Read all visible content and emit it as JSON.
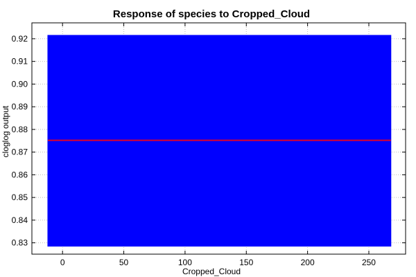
{
  "chart_data": {
    "type": "area",
    "title": "Response of species to Cropped_Cloud",
    "xlabel": "Cropped_Cloud",
    "ylabel": "cloglog output",
    "xlim": [
      -25,
      280
    ],
    "ylim": [
      0.825,
      0.927
    ],
    "xticks": [
      0,
      50,
      100,
      150,
      200,
      250
    ],
    "yticks": [
      0.83,
      0.84,
      0.85,
      0.86,
      0.87,
      0.88,
      0.89,
      0.9,
      0.91,
      0.92
    ],
    "ytick_labels": [
      "0.83",
      "0.84",
      "0.85",
      "0.86",
      "0.87",
      "0.88",
      "0.89",
      "0.90",
      "0.91",
      "0.92"
    ],
    "grid": true,
    "series": [
      {
        "kind": "band",
        "x": [
          -12,
          268
        ],
        "lower": [
          0.8285,
          0.8285
        ],
        "upper": [
          0.9215,
          0.9215
        ],
        "color": "#0000ff"
      },
      {
        "kind": "line",
        "x": [
          -12,
          268
        ],
        "values": [
          0.8752,
          0.8752
        ],
        "color": "#e0002a"
      }
    ]
  }
}
